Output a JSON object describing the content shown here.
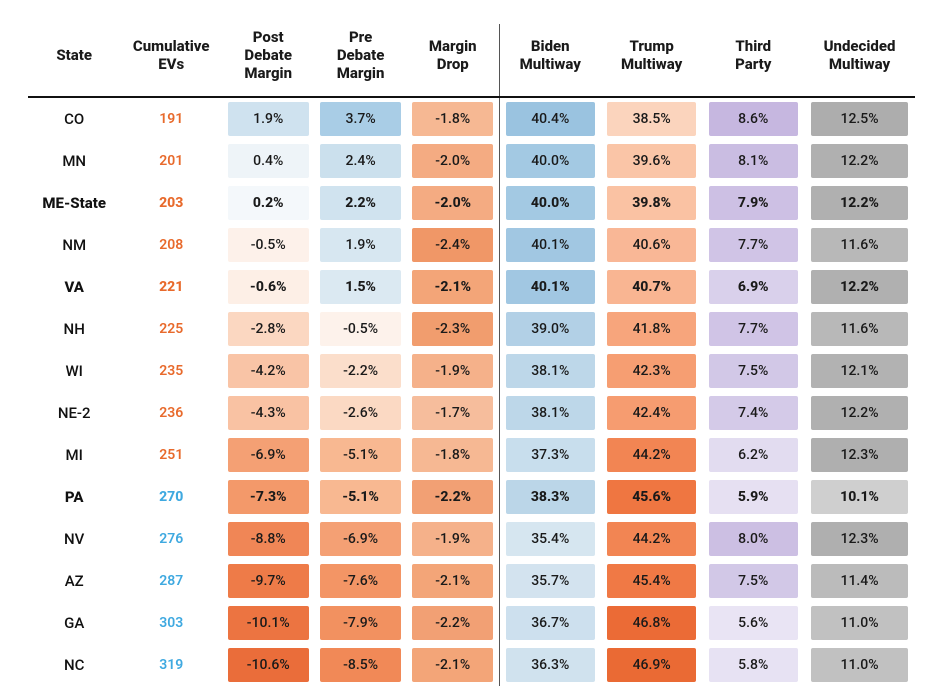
{
  "table": {
    "columns": [
      {
        "key": "state",
        "label": "State",
        "width": "10%"
      },
      {
        "key": "ev",
        "label": "Cumulative\nEVs",
        "width": "11%"
      },
      {
        "key": "post",
        "label": "Post\nDebate\nMargin",
        "width": "10%"
      },
      {
        "key": "pre",
        "label": "Pre\nDebate\nMargin",
        "width": "10%"
      },
      {
        "key": "drop",
        "label": "Margin\nDrop",
        "width": "10%",
        "divider_after": true
      },
      {
        "key": "biden",
        "label": "Biden\nMultiway",
        "width": "11%"
      },
      {
        "key": "trump",
        "label": "Trump\nMultiway",
        "width": "11%"
      },
      {
        "key": "third",
        "label": "Third\nParty",
        "width": "11%"
      },
      {
        "key": "undec",
        "label": "Undecided\nMultiway",
        "width": "12%"
      }
    ],
    "ev_colors": {
      "under270": "#e86a2c",
      "at_or_over270": "#3fa9e0"
    },
    "font": {
      "header_size": 15,
      "cell_size": 14
    },
    "rows": [
      {
        "state": "CO",
        "bold": false,
        "ev": 191,
        "post": {
          "text": "1.9%",
          "bg": "#cfe2ef"
        },
        "pre": {
          "text": "3.7%",
          "bg": "#a9cde6"
        },
        "drop": {
          "text": "-1.8%",
          "bg": "#f6b893"
        },
        "biden": {
          "text": "40.4%",
          "bg": "#9ac3e0"
        },
        "trump": {
          "text": "38.5%",
          "bg": "#fbd4bd"
        },
        "third": {
          "text": "8.6%",
          "bg": "#c6b7e0"
        },
        "undec": {
          "text": "12.5%",
          "bg": "#adadad"
        }
      },
      {
        "state": "MN",
        "bold": false,
        "ev": 201,
        "post": {
          "text": "0.4%",
          "bg": "#eef4f8"
        },
        "pre": {
          "text": "2.4%",
          "bg": "#cbe0ed"
        },
        "drop": {
          "text": "-2.0%",
          "bg": "#f4ab82"
        },
        "biden": {
          "text": "40.0%",
          "bg": "#a3c9e3"
        },
        "trump": {
          "text": "39.6%",
          "bg": "#fac5a7"
        },
        "third": {
          "text": "8.1%",
          "bg": "#cabde2"
        },
        "undec": {
          "text": "12.2%",
          "bg": "#b0b0b0"
        }
      },
      {
        "state": "ME-State",
        "bold": true,
        "ev": 203,
        "post": {
          "text": "0.2%",
          "bg": "#f4f8fb",
          "bold": true
        },
        "pre": {
          "text": "2.2%",
          "bg": "#d0e3ef"
        },
        "drop": {
          "text": "-2.0%",
          "bg": "#f4ab82"
        },
        "biden": {
          "text": "40.0%",
          "bg": "#a3c9e3"
        },
        "trump": {
          "text": "39.8%",
          "bg": "#fac2a3"
        },
        "third": {
          "text": "7.9%",
          "bg": "#cdc0e4"
        },
        "undec": {
          "text": "12.2%",
          "bg": "#b0b0b0"
        }
      },
      {
        "state": "NM",
        "bold": false,
        "ev": 208,
        "post": {
          "text": "-0.5%",
          "bg": "#fdf1ea"
        },
        "pre": {
          "text": "1.9%",
          "bg": "#d7e7f1"
        },
        "drop": {
          "text": "-2.4%",
          "bg": "#f09767"
        },
        "biden": {
          "text": "40.1%",
          "bg": "#a1c7e2"
        },
        "trump": {
          "text": "40.6%",
          "bg": "#f9b796"
        },
        "third": {
          "text": "7.7%",
          "bg": "#d0c4e6"
        },
        "undec": {
          "text": "11.6%",
          "bg": "#b8b8b8"
        }
      },
      {
        "state": "VA",
        "bold": true,
        "ev": 221,
        "post": {
          "text": "-0.6%",
          "bg": "#fdefe6"
        },
        "pre": {
          "text": "1.5%",
          "bg": "#dbe9f2",
          "bold": true
        },
        "drop": {
          "text": "-2.1%",
          "bg": "#f3a578"
        },
        "biden": {
          "text": "40.1%",
          "bg": "#a1c7e2"
        },
        "trump": {
          "text": "40.7%",
          "bg": "#f9b592"
        },
        "third": {
          "text": "6.9%",
          "bg": "#d9d0eb"
        },
        "undec": {
          "text": "12.2%",
          "bg": "#b0b0b0"
        }
      },
      {
        "state": "NH",
        "bold": false,
        "ev": 225,
        "post": {
          "text": "-2.8%",
          "bg": "#fbd7c1"
        },
        "pre": {
          "text": "-0.5%",
          "bg": "#fdf2eb"
        },
        "drop": {
          "text": "-2.3%",
          "bg": "#f19d6e"
        },
        "biden": {
          "text": "39.0%",
          "bg": "#b2d0e6"
        },
        "trump": {
          "text": "41.8%",
          "bg": "#f7a57c"
        },
        "third": {
          "text": "7.7%",
          "bg": "#d0c4e6"
        },
        "undec": {
          "text": "11.6%",
          "bg": "#b8b8b8"
        }
      },
      {
        "state": "WI",
        "bold": false,
        "ev": 235,
        "post": {
          "text": "-4.2%",
          "bg": "#f9c4a6"
        },
        "pre": {
          "text": "-2.2%",
          "bg": "#fbdecb"
        },
        "drop": {
          "text": "-1.9%",
          "bg": "#f5b18a"
        },
        "biden": {
          "text": "38.1%",
          "bg": "#bdd7e9"
        },
        "trump": {
          "text": "42.3%",
          "bg": "#f69e72"
        },
        "third": {
          "text": "7.5%",
          "bg": "#d2c8e7"
        },
        "undec": {
          "text": "12.1%",
          "bg": "#b2b2b2"
        }
      },
      {
        "state": "NE-2",
        "bold": false,
        "ev": 236,
        "post": {
          "text": "-4.3%",
          "bg": "#f9c2a3"
        },
        "pre": {
          "text": "-2.6%",
          "bg": "#fbd9c3"
        },
        "drop": {
          "text": "-1.7%",
          "bg": "#f6bd9c"
        },
        "biden": {
          "text": "38.1%",
          "bg": "#bdd7e9"
        },
        "trump": {
          "text": "42.4%",
          "bg": "#f69c70"
        },
        "third": {
          "text": "7.4%",
          "bg": "#d4cae8"
        },
        "undec": {
          "text": "12.2%",
          "bg": "#b0b0b0"
        }
      },
      {
        "state": "MI",
        "bold": false,
        "ev": 251,
        "post": {
          "text": "-6.9%",
          "bg": "#f4a074"
        },
        "pre": {
          "text": "-5.1%",
          "bg": "#f8b891"
        },
        "drop": {
          "text": "-1.8%",
          "bg": "#f6b893"
        },
        "biden": {
          "text": "37.3%",
          "bg": "#c8deed"
        },
        "trump": {
          "text": "44.2%",
          "bg": "#f28553"
        },
        "third": {
          "text": "6.2%",
          "bg": "#e2dcf0"
        },
        "undec": {
          "text": "12.3%",
          "bg": "#afafaf"
        }
      },
      {
        "state": "PA",
        "bold": true,
        "ev": 270,
        "post": {
          "text": "-7.3%",
          "bg": "#f3996a",
          "bold": true
        },
        "pre": {
          "text": "-5.1%",
          "bg": "#f8b891",
          "bold": true
        },
        "drop": {
          "text": "-2.2%",
          "bg": "#f2a074",
          "bold": true
        },
        "biden": {
          "text": "38.3%",
          "bg": "#bbd6e8"
        },
        "trump": {
          "text": "45.6%",
          "bg": "#ef7641"
        },
        "third": {
          "text": "5.9%",
          "bg": "#e6e0f2"
        },
        "undec": {
          "text": "10.1%",
          "bg": "#cfcfcf"
        }
      },
      {
        "state": "NV",
        "bold": false,
        "ev": 276,
        "post": {
          "text": "-8.8%",
          "bg": "#f08656"
        },
        "pre": {
          "text": "-6.9%",
          "bg": "#f4a074"
        },
        "drop": {
          "text": "-1.9%",
          "bg": "#f5b18a"
        },
        "biden": {
          "text": "35.4%",
          "bg": "#d6e6f0"
        },
        "trump": {
          "text": "44.2%",
          "bg": "#f28553"
        },
        "third": {
          "text": "8.0%",
          "bg": "#ccbfe3"
        },
        "undec": {
          "text": "12.3%",
          "bg": "#afafaf"
        }
      },
      {
        "state": "AZ",
        "bold": false,
        "ev": 287,
        "post": {
          "text": "-9.7%",
          "bg": "#ee7b48"
        },
        "pre": {
          "text": "-7.6%",
          "bg": "#f39565"
        },
        "drop": {
          "text": "-2.1%",
          "bg": "#f3a578"
        },
        "biden": {
          "text": "35.7%",
          "bg": "#d3e3ef"
        },
        "trump": {
          "text": "45.4%",
          "bg": "#f07945"
        },
        "third": {
          "text": "7.5%",
          "bg": "#d2c8e7"
        },
        "undec": {
          "text": "11.4%",
          "bg": "#bbbbbb"
        }
      },
      {
        "state": "GA",
        "bold": false,
        "ev": 303,
        "post": {
          "text": "-10.1%",
          "bg": "#ec7441"
        },
        "pre": {
          "text": "-7.9%",
          "bg": "#f29160"
        },
        "drop": {
          "text": "-2.2%",
          "bg": "#f2a074"
        },
        "biden": {
          "text": "36.7%",
          "bg": "#cde0ee"
        },
        "trump": {
          "text": "46.8%",
          "bg": "#eb6b36"
        },
        "third": {
          "text": "5.6%",
          "bg": "#e9e4f4"
        },
        "undec": {
          "text": "11.0%",
          "bg": "#c1c1c1"
        }
      },
      {
        "state": "NC",
        "bold": false,
        "ev": 319,
        "post": {
          "text": "-10.6%",
          "bg": "#ea6d3a"
        },
        "pre": {
          "text": "-8.5%",
          "bg": "#f18957"
        },
        "drop": {
          "text": "-2.1%",
          "bg": "#f3a578"
        },
        "biden": {
          "text": "36.3%",
          "bg": "#d0e2ee"
        },
        "trump": {
          "text": "46.9%",
          "bg": "#ea6a34"
        },
        "third": {
          "text": "5.8%",
          "bg": "#e7e2f3"
        },
        "undec": {
          "text": "11.0%",
          "bg": "#c1c1c1"
        }
      }
    ]
  }
}
